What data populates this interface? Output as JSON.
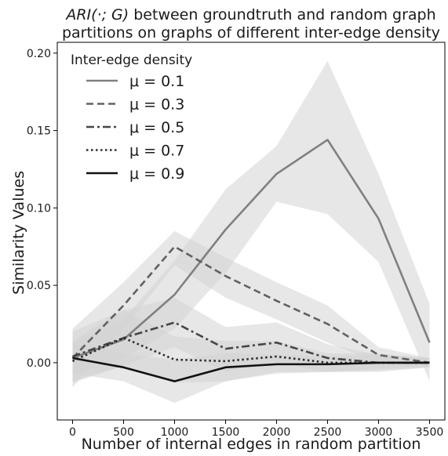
{
  "chart_data": {
    "type": "line",
    "title_italic": "ARI(·; G)",
    "title_rest": " between groundtruth and random graph",
    "title_line2": "partitions on graphs of different inter-edge density",
    "xlabel": "Number of internal edges in random partition",
    "ylabel": "Similarity Values",
    "x": [
      0,
      500,
      1000,
      1500,
      2000,
      2500,
      3000,
      3500
    ],
    "xlim": [
      -150,
      3650
    ],
    "ylim": [
      -0.037,
      0.207
    ],
    "x_ticks": [
      "0",
      "500",
      "1000",
      "1500",
      "2000",
      "2500",
      "3000",
      "3500"
    ],
    "y_ticks": [
      "0.00",
      "0.05",
      "0.10",
      "0.15",
      "0.20"
    ],
    "legend_title": "Inter-edge density",
    "legend_position": "top-left",
    "band_color": "#d3d3d3",
    "series": [
      {
        "name": "μ = 0.1",
        "color": "#808080",
        "dash": "solid",
        "values": [
          0.003,
          0.015,
          0.044,
          0.086,
          0.122,
          0.144,
          0.093,
          0.013
        ],
        "lower": [
          -0.008,
          0.003,
          0.022,
          0.058,
          0.104,
          0.096,
          0.065,
          -0.012
        ],
        "upper": [
          0.013,
          0.028,
          0.066,
          0.112,
          0.14,
          0.195,
          0.122,
          0.038
        ]
      },
      {
        "name": "μ = 0.3",
        "color": "#616161",
        "dash": "dashed",
        "values": [
          0.003,
          0.037,
          0.075,
          0.056,
          0.04,
          0.025,
          0.005,
          0.0
        ],
        "lower": [
          -0.016,
          0.022,
          0.063,
          0.042,
          0.028,
          0.013,
          0.0,
          -0.002
        ],
        "upper": [
          0.022,
          0.052,
          0.085,
          0.068,
          0.052,
          0.037,
          0.01,
          0.003
        ]
      },
      {
        "name": "μ = 0.5",
        "color": "#454545",
        "dash": "dashdot",
        "values": [
          0.004,
          0.016,
          0.026,
          0.009,
          0.013,
          0.003,
          0.0,
          0.0
        ],
        "lower": [
          -0.012,
          -0.002,
          0.01,
          -0.006,
          0.0,
          -0.006,
          -0.004,
          -0.002
        ],
        "upper": [
          0.02,
          0.034,
          0.042,
          0.023,
          0.026,
          0.012,
          0.005,
          0.003
        ]
      },
      {
        "name": "μ = 0.7",
        "color": "#2b2b2b",
        "dash": "dotted",
        "values": [
          0.001,
          0.016,
          0.002,
          0.001,
          0.004,
          0.0,
          0.0,
          0.0
        ],
        "lower": [
          -0.013,
          -0.002,
          -0.013,
          -0.012,
          -0.006,
          -0.006,
          -0.006,
          -0.003
        ],
        "upper": [
          0.014,
          0.034,
          0.017,
          0.014,
          0.014,
          0.006,
          0.006,
          0.003
        ]
      },
      {
        "name": "μ = 0.9",
        "color": "#111111",
        "dash": "solid",
        "values": [
          0.003,
          -0.003,
          -0.012,
          -0.003,
          -0.001,
          -0.001,
          0.0,
          0.0
        ],
        "lower": [
          -0.007,
          -0.012,
          -0.026,
          -0.012,
          -0.007,
          -0.006,
          -0.005,
          -0.003
        ],
        "upper": [
          0.012,
          0.006,
          0.002,
          0.006,
          0.005,
          0.004,
          0.005,
          0.003
        ]
      }
    ]
  }
}
